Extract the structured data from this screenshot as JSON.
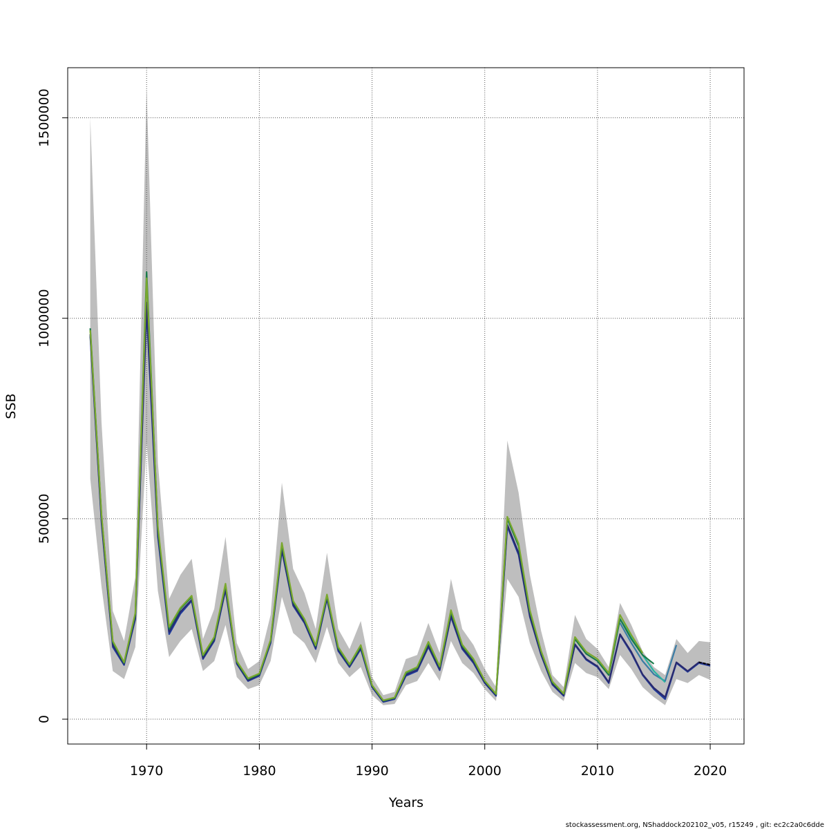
{
  "footer": "stockassessment.org, NShaddock202102_v05, r15249 , git: ec2c2a0c6dde",
  "colors": {
    "band": "#bebebe",
    "grid": "#555555",
    "axis": "#000000",
    "terminal_segment": "#000000"
  },
  "chart_data": {
    "type": "line",
    "xlabel": "Years",
    "ylabel": "SSB",
    "xlim": [
      1963,
      2023
    ],
    "ylim": [
      -62000,
      1625000
    ],
    "x_ticks": [
      1970,
      1980,
      1990,
      2000,
      2010,
      2020
    ],
    "y_ticks": [
      0,
      500000,
      1000000,
      1500000
    ],
    "y_tick_labels": [
      "0",
      "500000",
      "1000000",
      "1500000"
    ],
    "grid": true,
    "band": {
      "x": [
        1965,
        1966,
        1967,
        1968,
        1969,
        1970,
        1971,
        1972,
        1973,
        1974,
        1975,
        1976,
        1977,
        1978,
        1979,
        1980,
        1981,
        1982,
        1983,
        1984,
        1985,
        1986,
        1987,
        1988,
        1989,
        1990,
        1991,
        1992,
        1993,
        1994,
        1995,
        1996,
        1997,
        1998,
        1999,
        2000,
        2001,
        2002,
        2003,
        2004,
        2005,
        2006,
        2007,
        2008,
        2009,
        2010,
        2011,
        2012,
        2013,
        2014,
        2015,
        2016,
        2017,
        2018,
        2019,
        2020
      ],
      "upper": [
        1500000,
        740000,
        270000,
        195000,
        355000,
        1570000,
        640000,
        300000,
        360000,
        400000,
        200000,
        275000,
        455000,
        190000,
        125000,
        145000,
        260000,
        590000,
        375000,
        315000,
        225000,
        415000,
        225000,
        175000,
        245000,
        105000,
        60000,
        68000,
        150000,
        160000,
        240000,
        165000,
        350000,
        225000,
        185000,
        125000,
        80000,
        695000,
        565000,
        360000,
        220000,
        110000,
        80000,
        260000,
        200000,
        175000,
        130000,
        290000,
        235000,
        170000,
        130000,
        110000,
        200000,
        165000,
        195000,
        192000
      ],
      "lower": [
        600000,
        330000,
        120000,
        100000,
        180000,
        690000,
        320000,
        155000,
        195000,
        225000,
        120000,
        145000,
        235000,
        105000,
        75000,
        85000,
        145000,
        305000,
        215000,
        190000,
        140000,
        230000,
        140000,
        105000,
        130000,
        60000,
        35000,
        38000,
        85000,
        95000,
        140000,
        95000,
        195000,
        140000,
        115000,
        75000,
        45000,
        350000,
        305000,
        190000,
        120000,
        68000,
        45000,
        140000,
        115000,
        105000,
        75000,
        160000,
        125000,
        80000,
        55000,
        35000,
        100000,
        90000,
        110000,
        98000
      ]
    },
    "series": [
      {
        "color": "#1f3b9c",
        "x": [
          1965,
          1966,
          1967,
          1968,
          1969,
          1970,
          1971,
          1972,
          1973,
          1974,
          1975,
          1976,
          1977,
          1978,
          1979,
          1980,
          1981,
          1982,
          1983,
          1984,
          1985,
          1986,
          1987,
          1988,
          1989,
          1990,
          1991,
          1992,
          1993,
          1994,
          1995,
          1996,
          1997,
          1998,
          1999,
          2000,
          2001,
          2002,
          2003,
          2004,
          2005,
          2006,
          2007,
          2008,
          2009,
          2010,
          2011,
          2012,
          2013,
          2014,
          2015,
          2016,
          2017,
          2018,
          2019,
          2020
        ],
        "values": [
          955000,
          490000,
          180000,
          135000,
          250000,
          1020000,
          455000,
          212000,
          263000,
          295000,
          150000,
          195000,
          322000,
          138000,
          95000,
          108000,
          190000,
          420000,
          283000,
          240000,
          175000,
          300000,
          170000,
          130000,
          175000,
          80000,
          43000,
          50000,
          108000,
          120000,
          180000,
          122000,
          255000,
          175000,
          140000,
          90000,
          58000,
          480000,
          410000,
          255000,
          160000,
          86000,
          58000,
          185000,
          148000,
          130000,
          90000,
          210000,
          165000,
          110000,
          75000,
          50000,
          140000,
          118000,
          140000,
          133000
        ]
      },
      {
        "color": "#2a2a6e",
        "x": [
          1965,
          1966,
          1967,
          1968,
          1969,
          1970,
          1971,
          1972,
          1973,
          1974,
          1975,
          1976,
          1977,
          1978,
          1979,
          1980,
          1981,
          1982,
          1983,
          1984,
          1985,
          1986,
          1987,
          1988,
          1989,
          1990,
          1991,
          1992,
          1993,
          1994,
          1995,
          1996,
          1997,
          1998,
          1999,
          2000,
          2001,
          2002,
          2003,
          2004,
          2005,
          2006,
          2007,
          2008,
          2009,
          2010,
          2011,
          2012,
          2013,
          2014,
          2015,
          2016,
          2017,
          2018,
          2019,
          2020
        ],
        "values": [
          960000,
          495000,
          185000,
          138000,
          255000,
          1040000,
          465000,
          218000,
          268000,
          298000,
          153000,
          198000,
          326000,
          140000,
          97000,
          110000,
          193000,
          425000,
          286000,
          243000,
          178000,
          303000,
          173000,
          132000,
          178000,
          82000,
          45000,
          52000,
          111000,
          123000,
          183000,
          125000,
          258000,
          178000,
          143000,
          92000,
          60000,
          485000,
          415000,
          258000,
          162000,
          88000,
          60000,
          187000,
          150000,
          132000,
          92000,
          212000,
          168000,
          112000,
          78000,
          55000,
          142000,
          120000,
          142000,
          135000
        ]
      },
      {
        "color": "#3a7ca5",
        "x": [
          2012,
          2013,
          2014,
          2015,
          2016,
          2017
        ],
        "values": [
          240000,
          190000,
          145000,
          112000,
          95000,
          185000
        ]
      },
      {
        "color": "#2ab3a0",
        "x": [
          2011,
          2012,
          2013,
          2014,
          2015,
          2016
        ],
        "values": [
          115000,
          250000,
          205000,
          160000,
          120000,
          92000
        ]
      },
      {
        "color": "#1a7a4a",
        "x": [
          1965,
          1966,
          1967,
          1968,
          1969,
          1970,
          1971,
          1972,
          1973,
          1974,
          1975,
          1976,
          1977,
          1978,
          1979,
          1980,
          1981,
          1982,
          1983,
          1984,
          1985,
          1986,
          1987,
          1988,
          1989,
          1990,
          1991,
          1992,
          1993,
          1994,
          1995,
          1996,
          1997,
          1998,
          1999,
          2000,
          2001,
          2002,
          2003,
          2004,
          2005,
          2006,
          2007,
          2008,
          2009,
          2010,
          2011,
          2012,
          2013,
          2014,
          2015
        ],
        "values": [
          975000,
          508000,
          192000,
          140000,
          262000,
          1115000,
          475000,
          225000,
          275000,
          305000,
          158000,
          202000,
          335000,
          143000,
          100000,
          112000,
          196000,
          435000,
          292000,
          248000,
          182000,
          308000,
          177000,
          135000,
          182000,
          84000,
          46000,
          53000,
          115000,
          128000,
          190000,
          130000,
          268000,
          183000,
          148000,
          95000,
          62000,
          500000,
          432000,
          268000,
          168000,
          92000,
          63000,
          200000,
          163000,
          145000,
          110000,
          250000,
          200000,
          160000,
          138000
        ]
      },
      {
        "color": "#7aa82e",
        "x": [
          1965,
          1966,
          1967,
          1968,
          1969,
          1970,
          1971,
          1972,
          1973,
          1974,
          1975,
          1976,
          1977,
          1978,
          1979,
          1980,
          1981,
          1982,
          1983,
          1984,
          1985,
          1986,
          1987,
          1988,
          1989,
          1990,
          1991,
          1992,
          1993,
          1994,
          1995,
          1996,
          1997,
          1998,
          1999,
          2000,
          2001,
          2002,
          2003,
          2004,
          2005,
          2006,
          2007,
          2008,
          2009,
          2010,
          2011,
          2012,
          2013,
          2014
        ],
        "values": [
          970000,
          510000,
          195000,
          142000,
          265000,
          1100000,
          480000,
          230000,
          278000,
          308000,
          160000,
          205000,
          338000,
          145000,
          102000,
          114000,
          198000,
          440000,
          295000,
          250000,
          184000,
          311000,
          180000,
          137000,
          185000,
          85000,
          47000,
          54000,
          117000,
          130000,
          193000,
          132000,
          272000,
          186000,
          150000,
          96000,
          63000,
          505000,
          438000,
          272000,
          170000,
          94000,
          64000,
          205000,
          168000,
          150000,
          115000,
          260000,
          210000,
          165000
        ]
      }
    ],
    "terminal_segment": {
      "x": [
        2019,
        2020
      ],
      "values": [
        142000,
        136000
      ]
    }
  }
}
